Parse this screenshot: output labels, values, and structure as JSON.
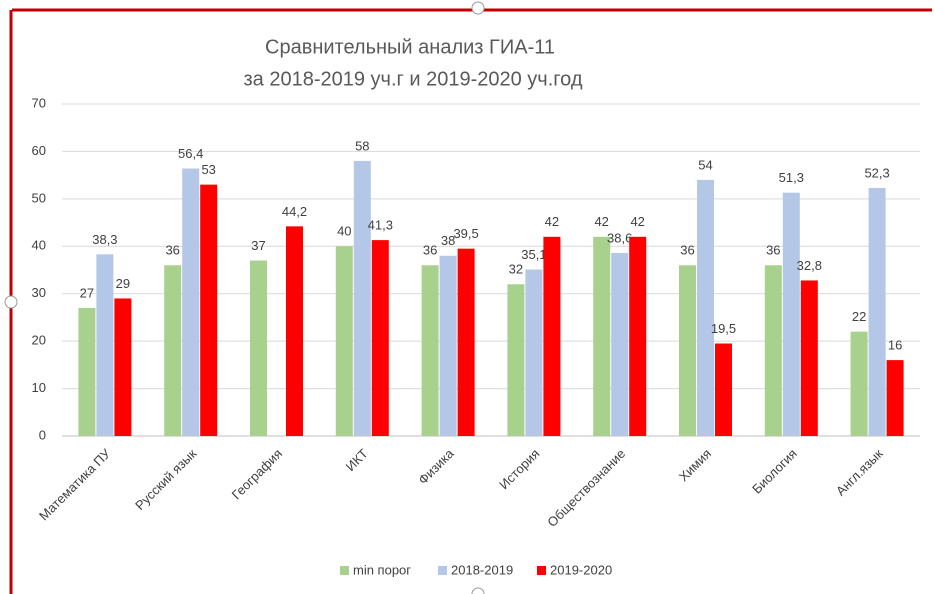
{
  "chart_data": {
    "type": "bar",
    "title": [
      "Сравнительный анализ ГИА-11",
      "за 2018-2019 уч.г и 2019-2020 уч.год"
    ],
    "categories": [
      "Математика ПУ",
      "Русский язык",
      "География",
      "ИКТ",
      "Физика",
      "История",
      "Обществознание",
      "Химия",
      "Биология",
      "Англ.язык"
    ],
    "series": [
      {
        "name": "min порог",
        "color": "#a9d18e",
        "values": [
          27,
          36,
          37,
          40,
          36,
          32,
          42,
          36,
          36,
          22
        ],
        "value_labels": [
          "27",
          "36",
          "37",
          "40",
          "36",
          "32",
          "42",
          "36",
          "36",
          "22"
        ]
      },
      {
        "name": "2018-2019",
        "color": "#b4c7e7",
        "values": [
          38.3,
          56.4,
          null,
          58,
          38,
          35.1,
          38.6,
          54,
          51.3,
          52.3
        ],
        "value_labels": [
          "38,3",
          "56,4",
          null,
          "58",
          "38",
          "35,1",
          "38,6",
          "54",
          "51,3",
          "52,3"
        ]
      },
      {
        "name": "2019-2020",
        "color": "#ff0000",
        "values": [
          29,
          53,
          44.2,
          41.3,
          39.5,
          42,
          42,
          19.5,
          32.8,
          16
        ],
        "value_labels": [
          "29",
          "53",
          "44,2",
          "41,3",
          "39,5",
          "42",
          "42",
          "19,5",
          "32,8",
          "16"
        ]
      }
    ],
    "ylim": [
      0,
      70
    ],
    "yticks": [
      0,
      10,
      20,
      30,
      40,
      50,
      60,
      70
    ],
    "grid": true,
    "legend": "bottom"
  }
}
